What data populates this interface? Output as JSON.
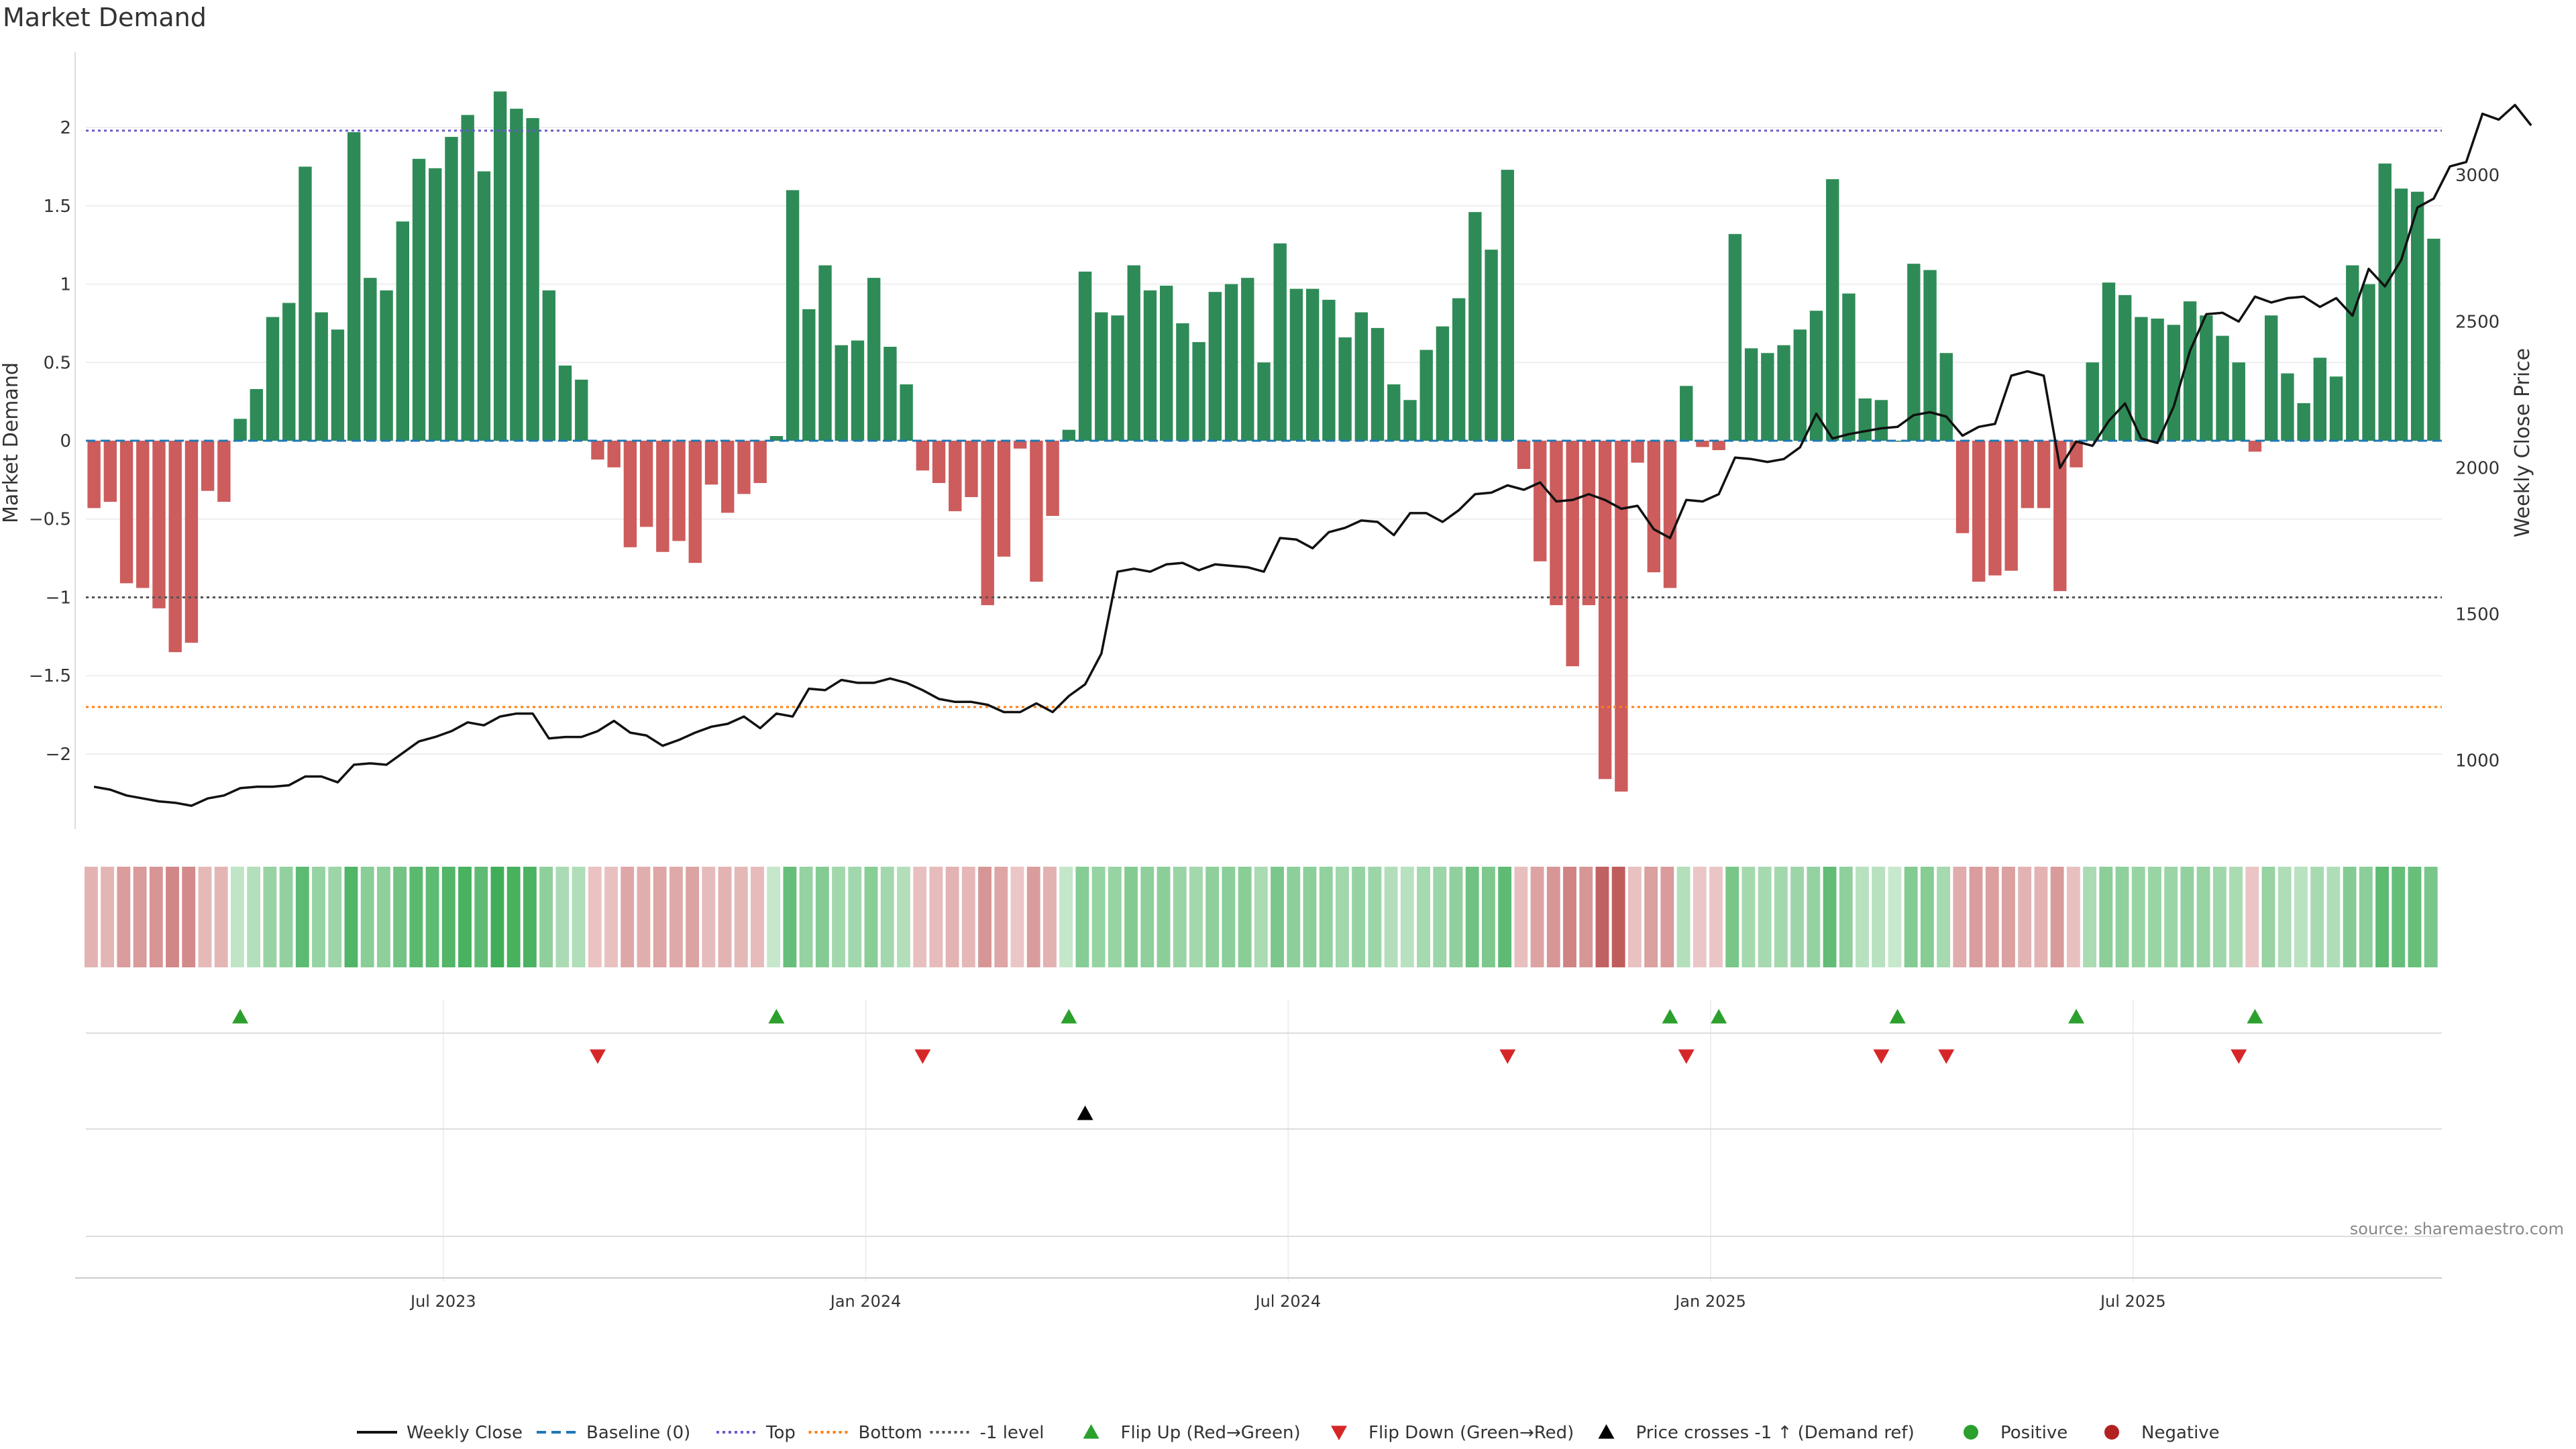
{
  "title": "Market Demand",
  "source": "source: sharemaestro.com",
  "colors": {
    "positive": "#2e8b57",
    "negative": "#cd5c5c",
    "price_line": "#111111",
    "baseline": "#1f77b4",
    "top": "#6a5acd",
    "bottom": "#ff7f0e",
    "minus_one": "#555555",
    "flip_up": "#2ca02c",
    "flip_down": "#d62728"
  },
  "chart_data": {
    "type": "bar",
    "title": "Market Demand",
    "xlabel": "",
    "ylabel": "Market Demand",
    "y2label": "Weekly Close Price",
    "ylim": [
      -2.48,
      2.48
    ],
    "y2lim": [
      765,
      3420
    ],
    "yticks": [
      2,
      1.5,
      1,
      0.5,
      0,
      -0.5,
      -1,
      -1.5,
      -2
    ],
    "ytick_labels": [
      "2",
      "1.5",
      "1",
      "0.5",
      "0",
      "−0.5",
      "−1",
      "−1.5",
      "−2"
    ],
    "y2ticks": [
      3000,
      2500,
      2000,
      1500,
      1000
    ],
    "xticks": [
      21.5,
      47.5,
      73.5,
      99.5,
      125.5
    ],
    "xtick_labels": [
      "Jul 2023",
      "Jan 2024",
      "Jul 2024",
      "Jan 2025",
      "Jul 2025"
    ],
    "levels": {
      "baseline": 0,
      "top": 1.98,
      "bottom": -1.7,
      "minus_one": -1.0
    },
    "series": [
      {
        "name": "Market Demand",
        "kind": "bar",
        "values": [
          -0.43,
          -0.39,
          -0.91,
          -0.94,
          -1.07,
          -1.35,
          -1.29,
          -0.32,
          -0.39,
          0.14,
          0.33,
          0.79,
          0.88,
          1.75,
          0.82,
          0.71,
          1.97,
          1.04,
          0.96,
          1.4,
          1.8,
          1.74,
          1.94,
          2.08,
          1.72,
          2.23,
          2.12,
          2.06,
          0.96,
          0.48,
          0.39,
          -0.12,
          -0.17,
          -0.68,
          -0.55,
          -0.71,
          -0.64,
          -0.78,
          -0.28,
          -0.46,
          -0.34,
          -0.27,
          0.03,
          1.6,
          0.84,
          1.12,
          0.61,
          0.64,
          1.04,
          0.6,
          0.36,
          -0.19,
          -0.27,
          -0.45,
          -0.36,
          -1.05,
          -0.74,
          -0.05,
          -0.9,
          -0.48,
          0.07,
          1.08,
          0.82,
          0.8,
          1.12,
          0.96,
          0.99,
          0.75,
          0.63,
          0.95,
          1.0,
          1.04,
          0.5,
          1.26,
          0.97,
          0.97,
          0.9,
          0.66,
          0.82,
          0.72,
          0.36,
          0.26,
          0.58,
          0.73,
          0.91,
          1.46,
          1.22,
          1.73,
          -0.18,
          -0.77,
          -1.05,
          -1.44,
          -1.05,
          -2.16,
          -2.24,
          -0.14,
          -0.84,
          -0.94,
          0.35,
          -0.04,
          -0.06,
          1.32,
          0.59,
          0.56,
          0.61,
          0.71,
          0.83,
          1.67,
          0.94,
          0.27,
          0.26,
          0.0,
          1.13,
          1.09,
          0.56,
          -0.59,
          -0.9,
          -0.86,
          -0.83,
          -0.43,
          -0.43,
          -0.96,
          -0.17,
          0.5,
          1.01,
          0.93,
          0.79,
          0.78,
          0.74,
          0.89,
          0.8,
          0.67,
          0.5,
          -0.07,
          0.8,
          0.43,
          0.24,
          0.53,
          0.41,
          1.12,
          1.0,
          1.77,
          1.61,
          1.59,
          1.29
        ]
      },
      {
        "name": "Weekly Close",
        "kind": "line",
        "axis": "right",
        "values": [
          910,
          900,
          880,
          870,
          860,
          855,
          845,
          870,
          880,
          905,
          910,
          910,
          915,
          945,
          945,
          925,
          985,
          990,
          985,
          1025,
          1065,
          1080,
          1100,
          1130,
          1120,
          1150,
          1160,
          1160,
          1075,
          1080,
          1080,
          1100,
          1135,
          1095,
          1085,
          1050,
          1070,
          1095,
          1115,
          1125,
          1150,
          1110,
          1160,
          1150,
          1245,
          1240,
          1275,
          1265,
          1265,
          1280,
          1265,
          1240,
          1210,
          1200,
          1200,
          1190,
          1165,
          1165,
          1195,
          1165,
          1220,
          1260,
          1365,
          1645,
          1655,
          1645,
          1670,
          1675,
          1650,
          1670,
          1665,
          1660,
          1645,
          1760,
          1755,
          1725,
          1780,
          1795,
          1820,
          1815,
          1770,
          1845,
          1845,
          1815,
          1855,
          1910,
          1915,
          1940,
          1925,
          1950,
          1885,
          1890,
          1910,
          1890,
          1860,
          1870,
          1790,
          1760,
          1890,
          1885,
          1910,
          2035,
          2030,
          2020,
          2030,
          2070,
          2185,
          2100,
          2115,
          2125,
          2135,
          2140,
          2180,
          2190,
          2175,
          2110,
          2140,
          2150,
          2315,
          2330,
          2315,
          2000,
          2090,
          2075,
          2160,
          2220,
          2100,
          2085,
          2210,
          2400,
          2525,
          2530,
          2500,
          2585,
          2565,
          2580,
          2585,
          2550,
          2580,
          2520,
          2680,
          2620,
          2710,
          2890,
          2920,
          3030,
          3045,
          3210,
          3190,
          3240,
          3170
        ]
      }
    ],
    "heat_strip": {
      "name": "Demand strip",
      "values_same_as": "Market Demand"
    },
    "events": [
      {
        "name": "Flip Up (Red→Green)",
        "marker": "triangle-up",
        "color": "#2ca02c",
        "indices": [
          9,
          42,
          60,
          97,
          100,
          111,
          122,
          133
        ]
      },
      {
        "name": "Flip Down (Green→Red)",
        "marker": "triangle-down",
        "color": "#d62728",
        "indices": [
          31,
          51,
          87,
          98,
          110,
          114,
          132
        ]
      },
      {
        "name": "Price crosses -1 ↑ (Demand ref)",
        "marker": "triangle-up",
        "color": "#000000",
        "indices": [
          61
        ]
      }
    ],
    "legend": {
      "placement": "bottom-center",
      "entries": [
        {
          "label": "Weekly Close",
          "style": "line",
          "color": "#111111"
        },
        {
          "label": "Baseline (0)",
          "style": "dashed",
          "color": "#1f77b4"
        },
        {
          "label": "Top",
          "style": "dotted",
          "color": "#6a5acd"
        },
        {
          "label": "Bottom",
          "style": "dotted",
          "color": "#ff7f0e"
        },
        {
          "label": "-1 level",
          "style": "dotted",
          "color": "#555555"
        },
        {
          "label": "Flip Up (Red→Green)",
          "style": "triangle-up",
          "color": "#2ca02c"
        },
        {
          "label": "Flip Down (Green→Red)",
          "style": "triangle-down",
          "color": "#d62728"
        },
        {
          "label": "Price crosses -1 ↑ (Demand ref)",
          "style": "triangle-up",
          "color": "#000000"
        },
        {
          "label": "Positive",
          "style": "circle",
          "color": "#2ca02c"
        },
        {
          "label": "Negative",
          "style": "circle",
          "color": "#b22222"
        }
      ]
    },
    "grid": true
  }
}
